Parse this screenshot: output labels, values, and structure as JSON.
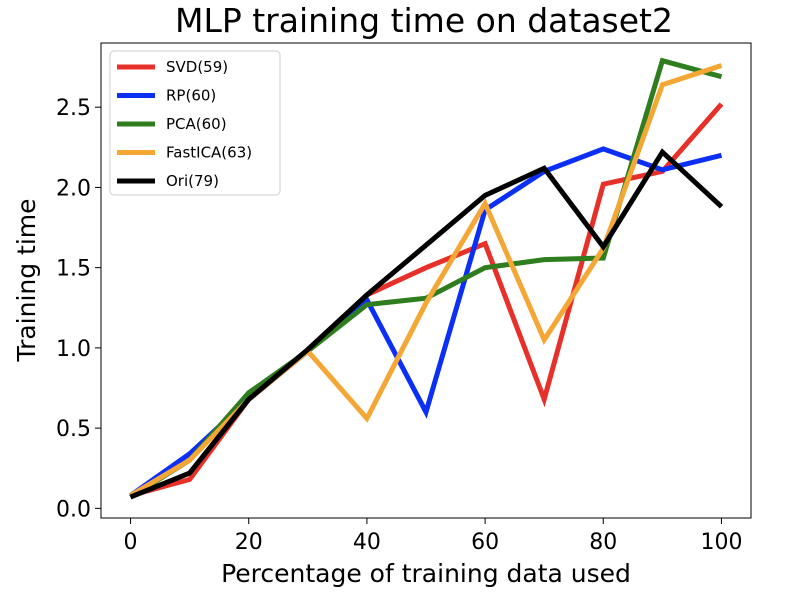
{
  "chart_data": {
    "type": "line",
    "title": "MLP training time on dataset2",
    "xlabel": "Percentage of training data used",
    "ylabel": "Training time",
    "xlim": [
      -5,
      105
    ],
    "ylim": [
      -0.06,
      2.9
    ],
    "xticks": [
      0,
      20,
      40,
      60,
      80,
      100
    ],
    "xtick_labels": [
      "0",
      "20",
      "40",
      "60",
      "80",
      "100"
    ],
    "yticks": [
      0.0,
      0.5,
      1.0,
      1.5,
      2.0,
      2.5
    ],
    "ytick_labels": [
      "0.0",
      "0.5",
      "1.0",
      "1.5",
      "2.0",
      "2.5"
    ],
    "grid": false,
    "legend_position": "top-left",
    "x": [
      0,
      10,
      20,
      30,
      40,
      50,
      60,
      70,
      80,
      90,
      100
    ],
    "series": [
      {
        "name": "SVD(59)",
        "color": "#e8302a",
        "values": [
          0.08,
          0.18,
          0.68,
          0.98,
          1.33,
          1.5,
          1.65,
          0.68,
          2.02,
          2.1,
          2.52
        ]
      },
      {
        "name": "RP(60)",
        "color": "#0c2ff5",
        "values": [
          0.08,
          0.34,
          0.68,
          0.98,
          1.3,
          0.6,
          1.86,
          2.1,
          2.24,
          2.11,
          2.2
        ]
      },
      {
        "name": "PCA(60)",
        "color": "#2e7d1e",
        "values": [
          0.07,
          0.3,
          0.72,
          0.98,
          1.27,
          1.31,
          1.5,
          1.55,
          1.56,
          2.79,
          2.69
        ]
      },
      {
        "name": "FastICA(63)",
        "color": "#f5a735",
        "values": [
          0.08,
          0.3,
          0.68,
          0.98,
          0.56,
          1.28,
          1.9,
          1.05,
          1.62,
          2.64,
          2.76
        ]
      },
      {
        "name": "Ori(79)",
        "color": "#000000",
        "values": [
          0.07,
          0.22,
          0.68,
          0.99,
          1.33,
          1.64,
          1.95,
          2.12,
          1.63,
          2.22,
          1.88
        ]
      }
    ]
  }
}
